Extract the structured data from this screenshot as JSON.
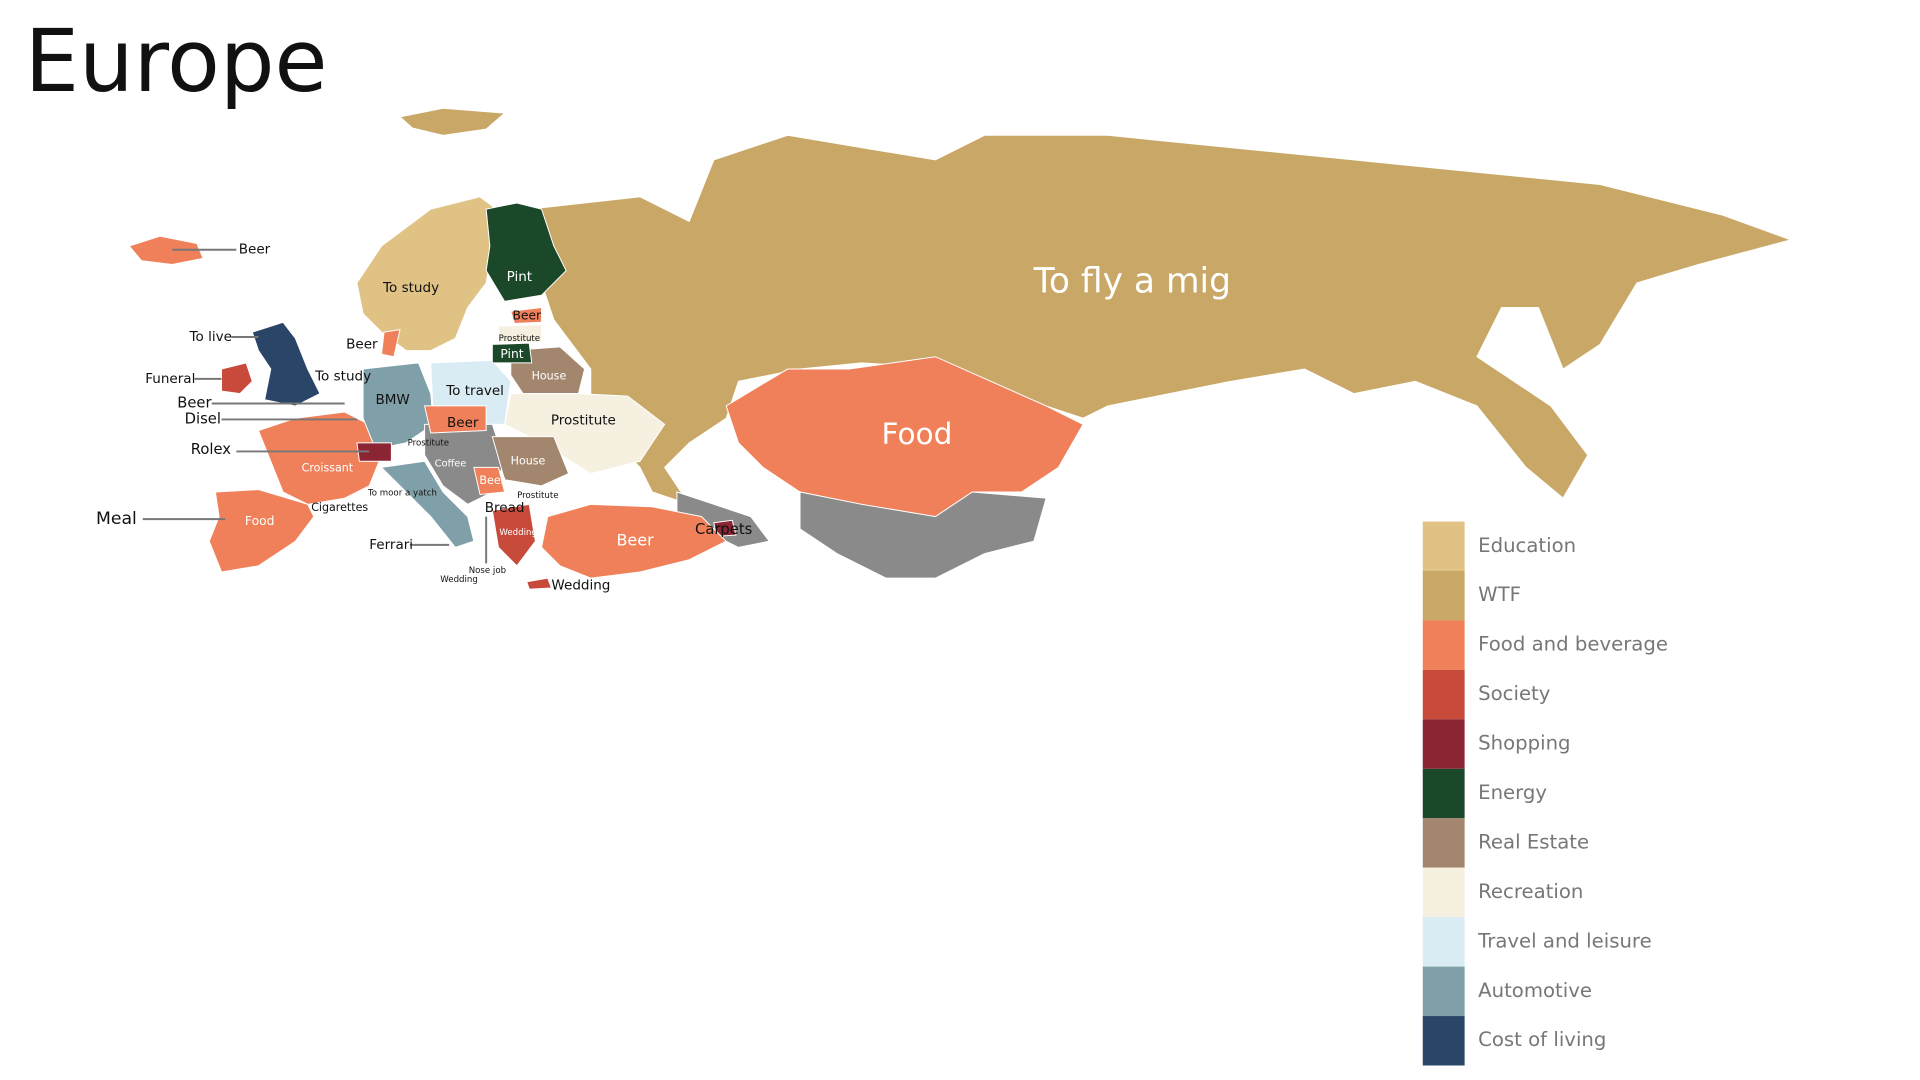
{
  "title": "Europe",
  "labels": [
    "To fly a mig",
    "Food",
    "Beer",
    "To study",
    "Pint",
    "Beer",
    "Prostitute",
    "Pint",
    "To live",
    "Beer",
    "To study",
    "Funeral",
    "Beer",
    "Disel",
    "Rolex",
    "Meal",
    "BMW",
    "To travel",
    "House",
    "Prostitute",
    "Beer",
    "Prostitute",
    "Croissant",
    "Coffee",
    "House",
    "Beer",
    "To moor a yatch",
    "Prostitute",
    "Cigarettes",
    "Bread",
    "Food",
    "Wedding",
    "Ferrari",
    "Nose job",
    "Wedding",
    "Beer",
    "Carpets",
    "Wedding"
  ],
  "legend": {
    "items": [
      {
        "label": "Education",
        "color": "#e0c285"
      },
      {
        "label": "WTF",
        "color": "#c9a767"
      },
      {
        "label": "Food and beverage",
        "color": "#f0805a"
      },
      {
        "label": "Society",
        "color": "#c84a3a"
      },
      {
        "label": "Shopping",
        "color": "#8b2433"
      },
      {
        "label": "Energy",
        "color": "#1b4828"
      },
      {
        "label": "Real Estate",
        "color": "#a3866e"
      },
      {
        "label": "Recreation",
        "color": "#f6f0e1"
      },
      {
        "label": "Travel and leisure",
        "color": "#d9ecf3"
      },
      {
        "label": "Automotive",
        "color": "#7fa0a8"
      },
      {
        "label": "Cost of living",
        "color": "#2a4567"
      }
    ]
  }
}
